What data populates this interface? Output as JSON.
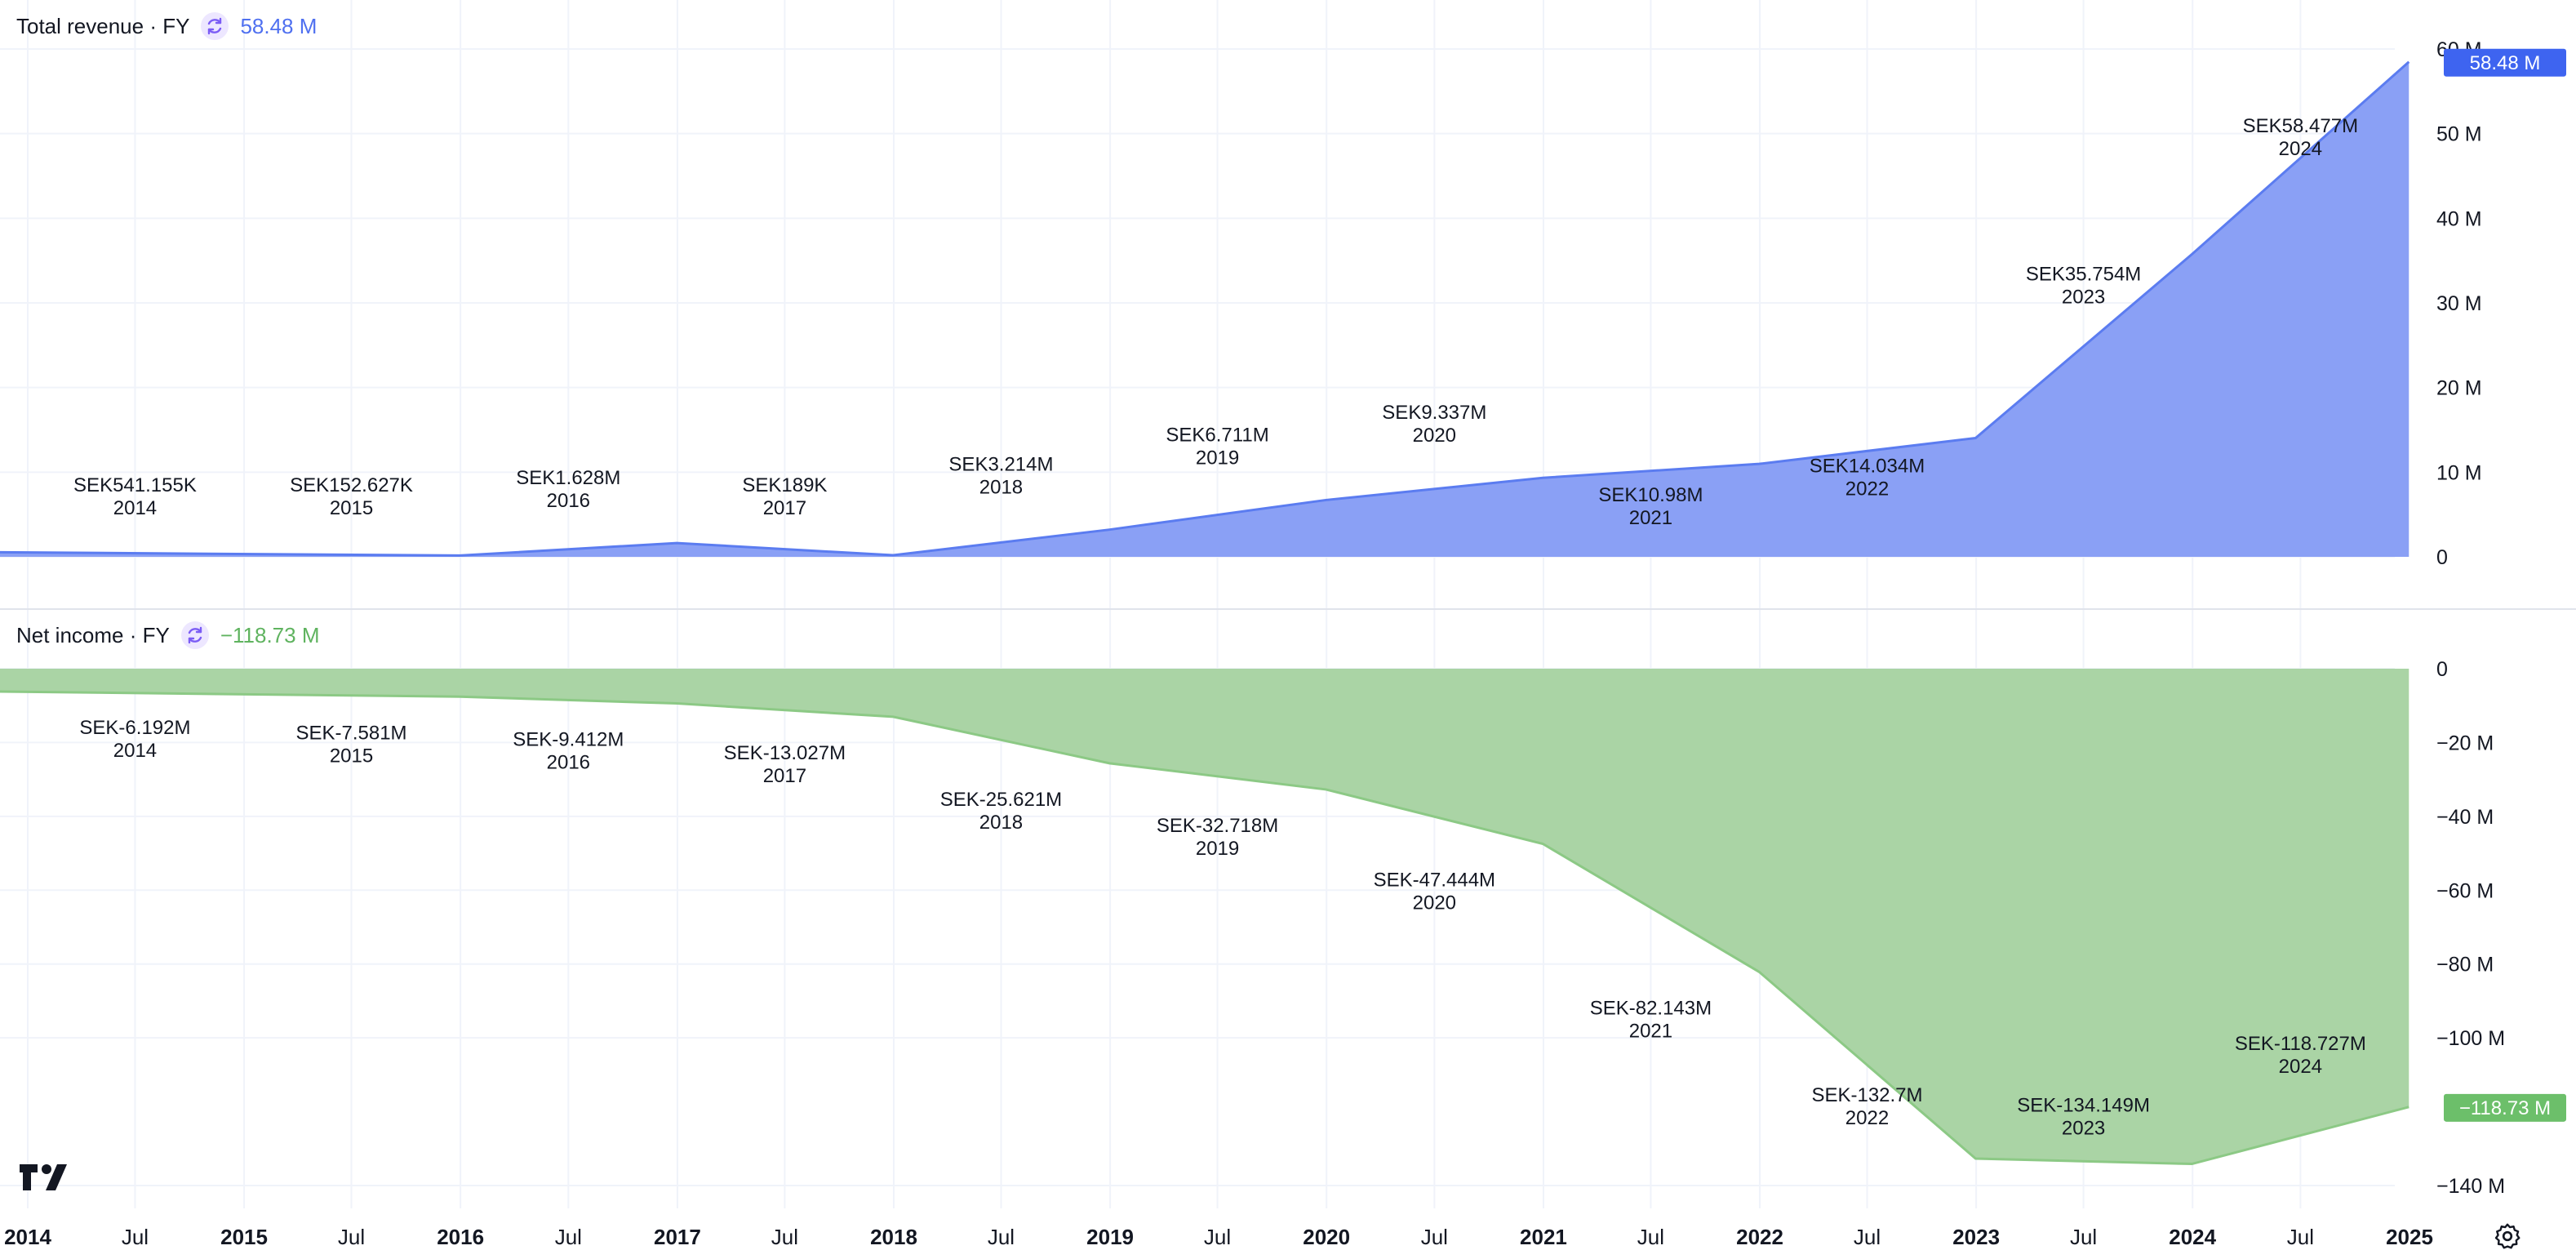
{
  "panels": {
    "revenue": {
      "title": "Total revenue · FY",
      "last_value": "58.48 M",
      "price_tag": "58.48 M",
      "color": "#8aa0f5",
      "line_color": "#5b7cf0",
      "tag_color": "#3e64f0",
      "icon": "refresh-icon"
    },
    "net_income": {
      "title": "Net income · FY",
      "last_value": "−118.73 M",
      "price_tag": "−118.73 M",
      "color": "#aad4a5",
      "line_color": "#8cc985",
      "tag_color": "#6cbf6a",
      "icon": "refresh-icon"
    }
  },
  "x_axis_labels": [
    {
      "date": "2014-01-01",
      "label": "2014",
      "bold": true
    },
    {
      "date": "2014-07-01",
      "label": "Jul",
      "bold": false
    },
    {
      "date": "2015-01-01",
      "label": "2015",
      "bold": true
    },
    {
      "date": "2015-07-01",
      "label": "Jul",
      "bold": false
    },
    {
      "date": "2016-01-01",
      "label": "2016",
      "bold": true
    },
    {
      "date": "2016-07-01",
      "label": "Jul",
      "bold": false
    },
    {
      "date": "2017-01-01",
      "label": "2017",
      "bold": true
    },
    {
      "date": "2017-07-01",
      "label": "Jul",
      "bold": false
    },
    {
      "date": "2018-01-01",
      "label": "2018",
      "bold": true
    },
    {
      "date": "2018-07-01",
      "label": "Jul",
      "bold": false
    },
    {
      "date": "2019-01-01",
      "label": "2019",
      "bold": true
    },
    {
      "date": "2019-07-01",
      "label": "Jul",
      "bold": false
    },
    {
      "date": "2020-01-01",
      "label": "2020",
      "bold": true
    },
    {
      "date": "2020-07-01",
      "label": "Jul",
      "bold": false
    },
    {
      "date": "2021-01-01",
      "label": "2021",
      "bold": true
    },
    {
      "date": "2021-07-01",
      "label": "Jul",
      "bold": false
    },
    {
      "date": "2022-01-01",
      "label": "2022",
      "bold": true
    },
    {
      "date": "2022-07-01",
      "label": "Jul",
      "bold": false
    },
    {
      "date": "2023-01-01",
      "label": "2023",
      "bold": true
    },
    {
      "date": "2023-07-01",
      "label": "Jul",
      "bold": false
    },
    {
      "date": "2024-01-01",
      "label": "2024",
      "bold": true
    },
    {
      "date": "2024-07-01",
      "label": "Jul",
      "bold": false
    },
    {
      "date": "2025-01-01",
      "label": "2025",
      "bold": true
    }
  ],
  "chart_data": [
    {
      "type": "area",
      "series_id": "revenue",
      "x_range": [
        "2014-01-01",
        "2025-01-01"
      ],
      "ylim": [
        0,
        60
      ],
      "y_ticks": [
        {
          "value": 0,
          "label": "0"
        },
        {
          "value": 10,
          "label": "10 M"
        },
        {
          "value": 20,
          "label": "20 M"
        },
        {
          "value": 30,
          "label": "30 M"
        },
        {
          "value": 40,
          "label": "40 M"
        },
        {
          "value": 50,
          "label": "50 M"
        },
        {
          "value": 60,
          "label": "60 M"
        }
      ],
      "grid": true,
      "points": [
        {
          "x": "2013-12-31",
          "y": 0.541,
          "label": "SEK541.155K",
          "year": "2014"
        },
        {
          "x": "2015-12-31",
          "y": 0.153,
          "label": "SEK152.627K",
          "year": "2015"
        },
        {
          "x": "2016-12-31",
          "y": 1.628,
          "label": "SEK1.628M",
          "year": "2016"
        },
        {
          "x": "2017-12-31",
          "y": 0.189,
          "label": "SEK189K",
          "year": "2017"
        },
        {
          "x": "2018-12-31",
          "y": 3.214,
          "label": "SEK3.214M",
          "year": "2018"
        },
        {
          "x": "2019-12-31",
          "y": 6.711,
          "label": "SEK6.711M",
          "year": "2019"
        },
        {
          "x": "2020-12-31",
          "y": 9.337,
          "label": "SEK9.337M",
          "year": "2020"
        },
        {
          "x": "2021-12-31",
          "y": 10.98,
          "label": "SEK10.98M",
          "year": "2021"
        },
        {
          "x": "2022-12-31",
          "y": 14.034,
          "label": "SEK14.034M",
          "year": "2022"
        },
        {
          "x": "2023-12-31",
          "y": 35.754,
          "label": "SEK35.754M",
          "year": "2023"
        },
        {
          "x": "2024-12-31",
          "y": 58.477,
          "label": "SEK58.477M",
          "year": "2024"
        }
      ]
    },
    {
      "type": "area",
      "series_id": "net_income",
      "x_range": [
        "2014-01-01",
        "2025-01-01"
      ],
      "ylim": [
        -145,
        0
      ],
      "y_ticks": [
        {
          "value": 0,
          "label": "0"
        },
        {
          "value": -20,
          "label": "−20 M"
        },
        {
          "value": -40,
          "label": "−40 M"
        },
        {
          "value": -60,
          "label": "−60 M"
        },
        {
          "value": -80,
          "label": "−80 M"
        },
        {
          "value": -100,
          "label": "−100 M"
        },
        {
          "value": -140,
          "label": "−140 M"
        }
      ],
      "grid": true,
      "points": [
        {
          "x": "2013-12-31",
          "y": -6.192,
          "label": "SEK-6.192M",
          "year": "2014"
        },
        {
          "x": "2015-12-31",
          "y": -7.581,
          "label": "SEK-7.581M",
          "year": "2015"
        },
        {
          "x": "2016-12-31",
          "y": -9.412,
          "label": "SEK-9.412M",
          "year": "2016"
        },
        {
          "x": "2017-12-31",
          "y": -13.027,
          "label": "SEK-13.027M",
          "year": "2017"
        },
        {
          "x": "2018-12-31",
          "y": -25.621,
          "label": "SEK-25.621M",
          "year": "2018"
        },
        {
          "x": "2019-12-31",
          "y": -32.718,
          "label": "SEK-32.718M",
          "year": "2019"
        },
        {
          "x": "2020-12-31",
          "y": -47.444,
          "label": "SEK-47.444M",
          "year": "2020"
        },
        {
          "x": "2021-12-31",
          "y": -82.143,
          "label": "SEK-82.143M",
          "year": "2021"
        },
        {
          "x": "2022-12-31",
          "y": -132.7,
          "label": "SEK-132.7M",
          "year": "2022"
        },
        {
          "x": "2023-12-31",
          "y": -134.149,
          "label": "SEK-134.149M",
          "year": "2023"
        },
        {
          "x": "2024-12-31",
          "y": -118.727,
          "label": "SEK-118.727M",
          "year": "2024"
        }
      ]
    }
  ]
}
